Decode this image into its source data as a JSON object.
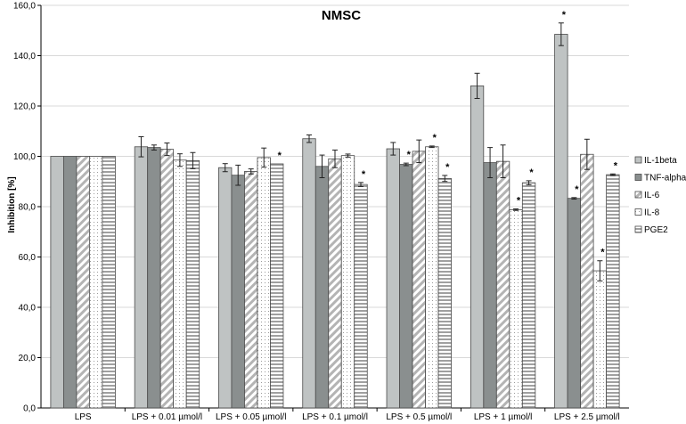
{
  "chart_data": {
    "type": "bar",
    "title": "NMSC",
    "xlabel": "",
    "ylabel": "Inhibition [%]",
    "ylim": [
      0,
      160
    ],
    "yticks": [
      "0,0",
      "20,0",
      "40,0",
      "60,0",
      "80,0",
      "100,0",
      "120,0",
      "140,0",
      "160,0"
    ],
    "grid": true,
    "legend_position": "right",
    "significance_marker": "*",
    "categories": [
      "LPS",
      "LPS + 0.01 µmol/l",
      "LPS + 0.05 µmol/l",
      "LPS + 0.1 µmol/l",
      "LPS + 0.5 µmol/l",
      "LPS + 1 µmol/l",
      "LPS + 2.5 µmol/l"
    ],
    "series": [
      {
        "name": "IL-1beta",
        "color": "#bfc3c3",
        "pattern": "solid-light",
        "values": [
          100,
          103.8,
          95.5,
          107.0,
          103.0,
          128.0,
          148.5
        ],
        "errors": [
          0,
          4.0,
          1.6,
          1.5,
          2.5,
          5.0,
          4.5
        ],
        "significant": [
          false,
          false,
          false,
          false,
          false,
          false,
          true
        ]
      },
      {
        "name": "TNF-alpha",
        "color": "#8a8f8f",
        "pattern": "solid-dark",
        "values": [
          100,
          103.5,
          92.5,
          96.0,
          96.8,
          97.5,
          83.3
        ],
        "errors": [
          0,
          1.0,
          4.0,
          4.5,
          0.5,
          6.0,
          0.3
        ],
        "significant": [
          false,
          false,
          false,
          false,
          true,
          false,
          true
        ]
      },
      {
        "name": "IL-6",
        "color": "#b4b4b4",
        "pattern": "diagonal",
        "values": [
          100,
          102.8,
          94.0,
          99.0,
          102.0,
          98.0,
          100.8
        ],
        "errors": [
          0,
          2.5,
          1.0,
          3.5,
          4.5,
          6.5,
          6.0
        ],
        "significant": [
          false,
          false,
          false,
          false,
          false,
          false,
          false
        ]
      },
      {
        "name": "IL-8",
        "color": "#c8c8c8",
        "pattern": "dotted",
        "values": [
          100,
          98.5,
          99.5,
          100.3,
          103.8,
          78.8,
          54.5
        ],
        "errors": [
          0,
          2.5,
          3.8,
          0.6,
          0.3,
          0.3,
          4.0
        ],
        "significant": [
          false,
          false,
          false,
          false,
          true,
          true,
          true
        ]
      },
      {
        "name": "PGE2",
        "color": "#a0a0a0",
        "pattern": "horizontal",
        "values": [
          100,
          98.3,
          97.0,
          88.8,
          91.2,
          89.5,
          92.7
        ],
        "errors": [
          0,
          3.2,
          0,
          0.8,
          1.2,
          0.8,
          0.3
        ],
        "significant": [
          false,
          false,
          true,
          true,
          true,
          true,
          true
        ]
      }
    ]
  }
}
